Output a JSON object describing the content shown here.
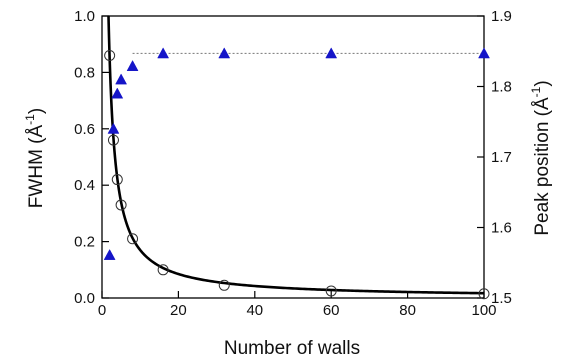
{
  "chart_data": {
    "type": "scatter",
    "title": "",
    "xlabel": "Number of walls",
    "ylabel_left": {
      "text": "FWHM (Å",
      "superscript": "-1",
      "close": ")"
    },
    "ylabel_right": {
      "text": "Peak position (Å",
      "superscript": "-1",
      "close": ")"
    },
    "x_range": [
      0,
      100
    ],
    "y_left_range": [
      0.0,
      1.0
    ],
    "y_right_range": [
      1.5,
      1.9
    ],
    "x_ticks": [
      "0",
      "20",
      "40",
      "60",
      "80",
      "100"
    ],
    "y_left_ticks": [
      "0.0",
      "0.2",
      "0.4",
      "0.6",
      "0.8",
      "1.0"
    ],
    "y_right_ticks": [
      "1.5",
      "1.6",
      "1.7",
      "1.8",
      "1.9"
    ],
    "grid": false,
    "series": [
      {
        "axis": "left",
        "marker": "open-circle",
        "color": "#333333",
        "x": [
          2,
          3,
          4,
          5,
          8,
          16,
          32,
          60,
          100
        ],
        "y": [
          0.86,
          0.56,
          0.42,
          0.33,
          0.21,
          0.1,
          0.045,
          0.025,
          0.015
        ]
      },
      {
        "axis": "left",
        "style": "solid-line",
        "color": "#000000",
        "fit": "y = 1.7 / x",
        "x_start": 1.7
      },
      {
        "axis": "right",
        "marker": "filled-triangle",
        "color": "#1515c8",
        "x": [
          2,
          3,
          4,
          5,
          8,
          16,
          32,
          60,
          100
        ],
        "y": [
          1.561,
          1.74,
          1.79,
          1.81,
          1.829,
          1.847,
          1.847,
          1.847,
          1.847
        ]
      },
      {
        "axis": "right",
        "style": "dotted-line",
        "color": "#777777",
        "y": 1.847,
        "x_from": 8,
        "x_to": 100
      }
    ]
  }
}
